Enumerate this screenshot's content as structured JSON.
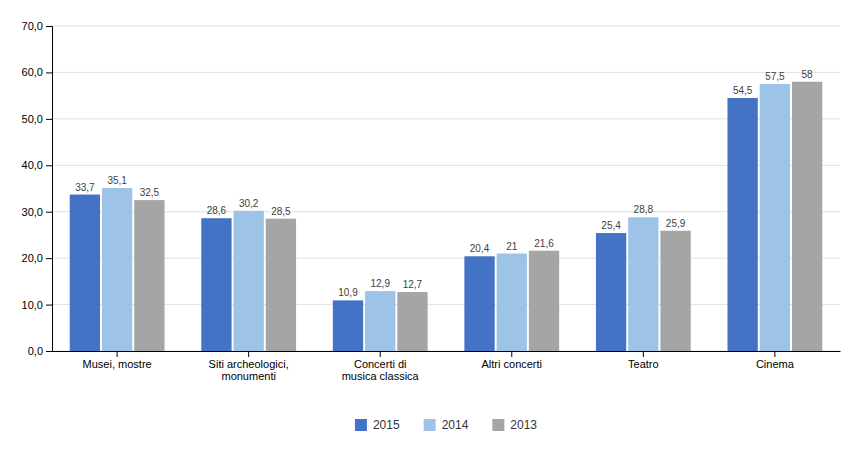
{
  "chart_data": {
    "type": "bar",
    "categories": [
      "Musei, mostre",
      "Siti archeologici,\nmonumenti",
      "Concerti di\nmusica classica",
      "Altri concerti",
      "Teatro",
      "Cinema"
    ],
    "series": [
      {
        "name": "2015",
        "color": "#4472C4",
        "values": [
          33.7,
          28.6,
          10.9,
          20.4,
          25.4,
          54.5
        ],
        "value_labels": [
          "33,7",
          "28,6",
          "10,9",
          "20,4",
          "25,4",
          "54,5"
        ]
      },
      {
        "name": "2014",
        "color": "#9DC3E6",
        "values": [
          35.1,
          30.2,
          12.9,
          21.0,
          28.8,
          57.5
        ],
        "value_labels": [
          "35,1",
          "30,2",
          "12,9",
          "21",
          "28,8",
          "57,5"
        ]
      },
      {
        "name": "2013",
        "color": "#A5A5A5",
        "values": [
          32.5,
          28.5,
          12.7,
          21.6,
          25.9,
          58.0
        ],
        "value_labels": [
          "32,5",
          "28,5",
          "12,7",
          "21,6",
          "25,9",
          "58"
        ]
      }
    ],
    "ylim": [
      0,
      70
    ],
    "yticks": [
      {
        "value": 0,
        "label": "0,0"
      },
      {
        "value": 10,
        "label": "10,0"
      },
      {
        "value": 20,
        "label": "20,0"
      },
      {
        "value": 30,
        "label": "30,0"
      },
      {
        "value": 40,
        "label": "40,0"
      },
      {
        "value": 50,
        "label": "50,0"
      },
      {
        "value": 60,
        "label": "60,0"
      },
      {
        "value": 70,
        "label": "70,0"
      }
    ],
    "grid": true,
    "data_labels": true,
    "legend": "bottom"
  }
}
